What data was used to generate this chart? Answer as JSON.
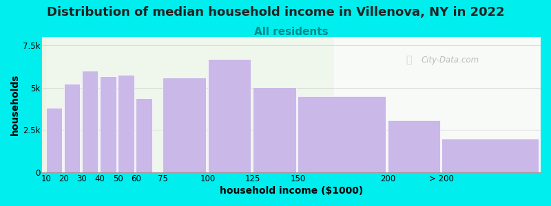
{
  "title": "Distribution of median household income in Villenova, NY in 2022",
  "subtitle": "All residents",
  "xlabel": "household income ($1000)",
  "ylabel": "households",
  "background_color": "#00EEEE",
  "plot_bg_left": "#eaf5e4",
  "plot_bg_right": "#f0f5f0",
  "bar_color": "#c9b8e8",
  "bar_edgecolor": "#ffffff",
  "categories": [
    "10",
    "20",
    "30",
    "40",
    "50",
    "60",
    "75",
    "100",
    "125",
    "150",
    "200",
    "> 200"
  ],
  "left_edges": [
    10,
    20,
    30,
    40,
    50,
    60,
    75,
    100,
    125,
    150,
    200,
    230
  ],
  "widths": [
    10,
    10,
    10,
    10,
    10,
    10,
    25,
    25,
    25,
    50,
    30,
    55
  ],
  "values": [
    3800,
    5250,
    6000,
    5700,
    5750,
    4400,
    5600,
    6700,
    5050,
    4500,
    3100,
    2000
  ],
  "ylim": [
    0,
    8000
  ],
  "yticks": [
    0,
    2500,
    5000,
    7500
  ],
  "ytick_labels": [
    "0",
    "2.5k",
    "5k",
    "7.5k"
  ],
  "xlim_min": 10,
  "xlim_max": 285,
  "title_fontsize": 13,
  "subtitle_fontsize": 11,
  "axis_label_fontsize": 10,
  "tick_fontsize": 8.5,
  "watermark_text": "City-Data.com",
  "bg_split_x": 170
}
